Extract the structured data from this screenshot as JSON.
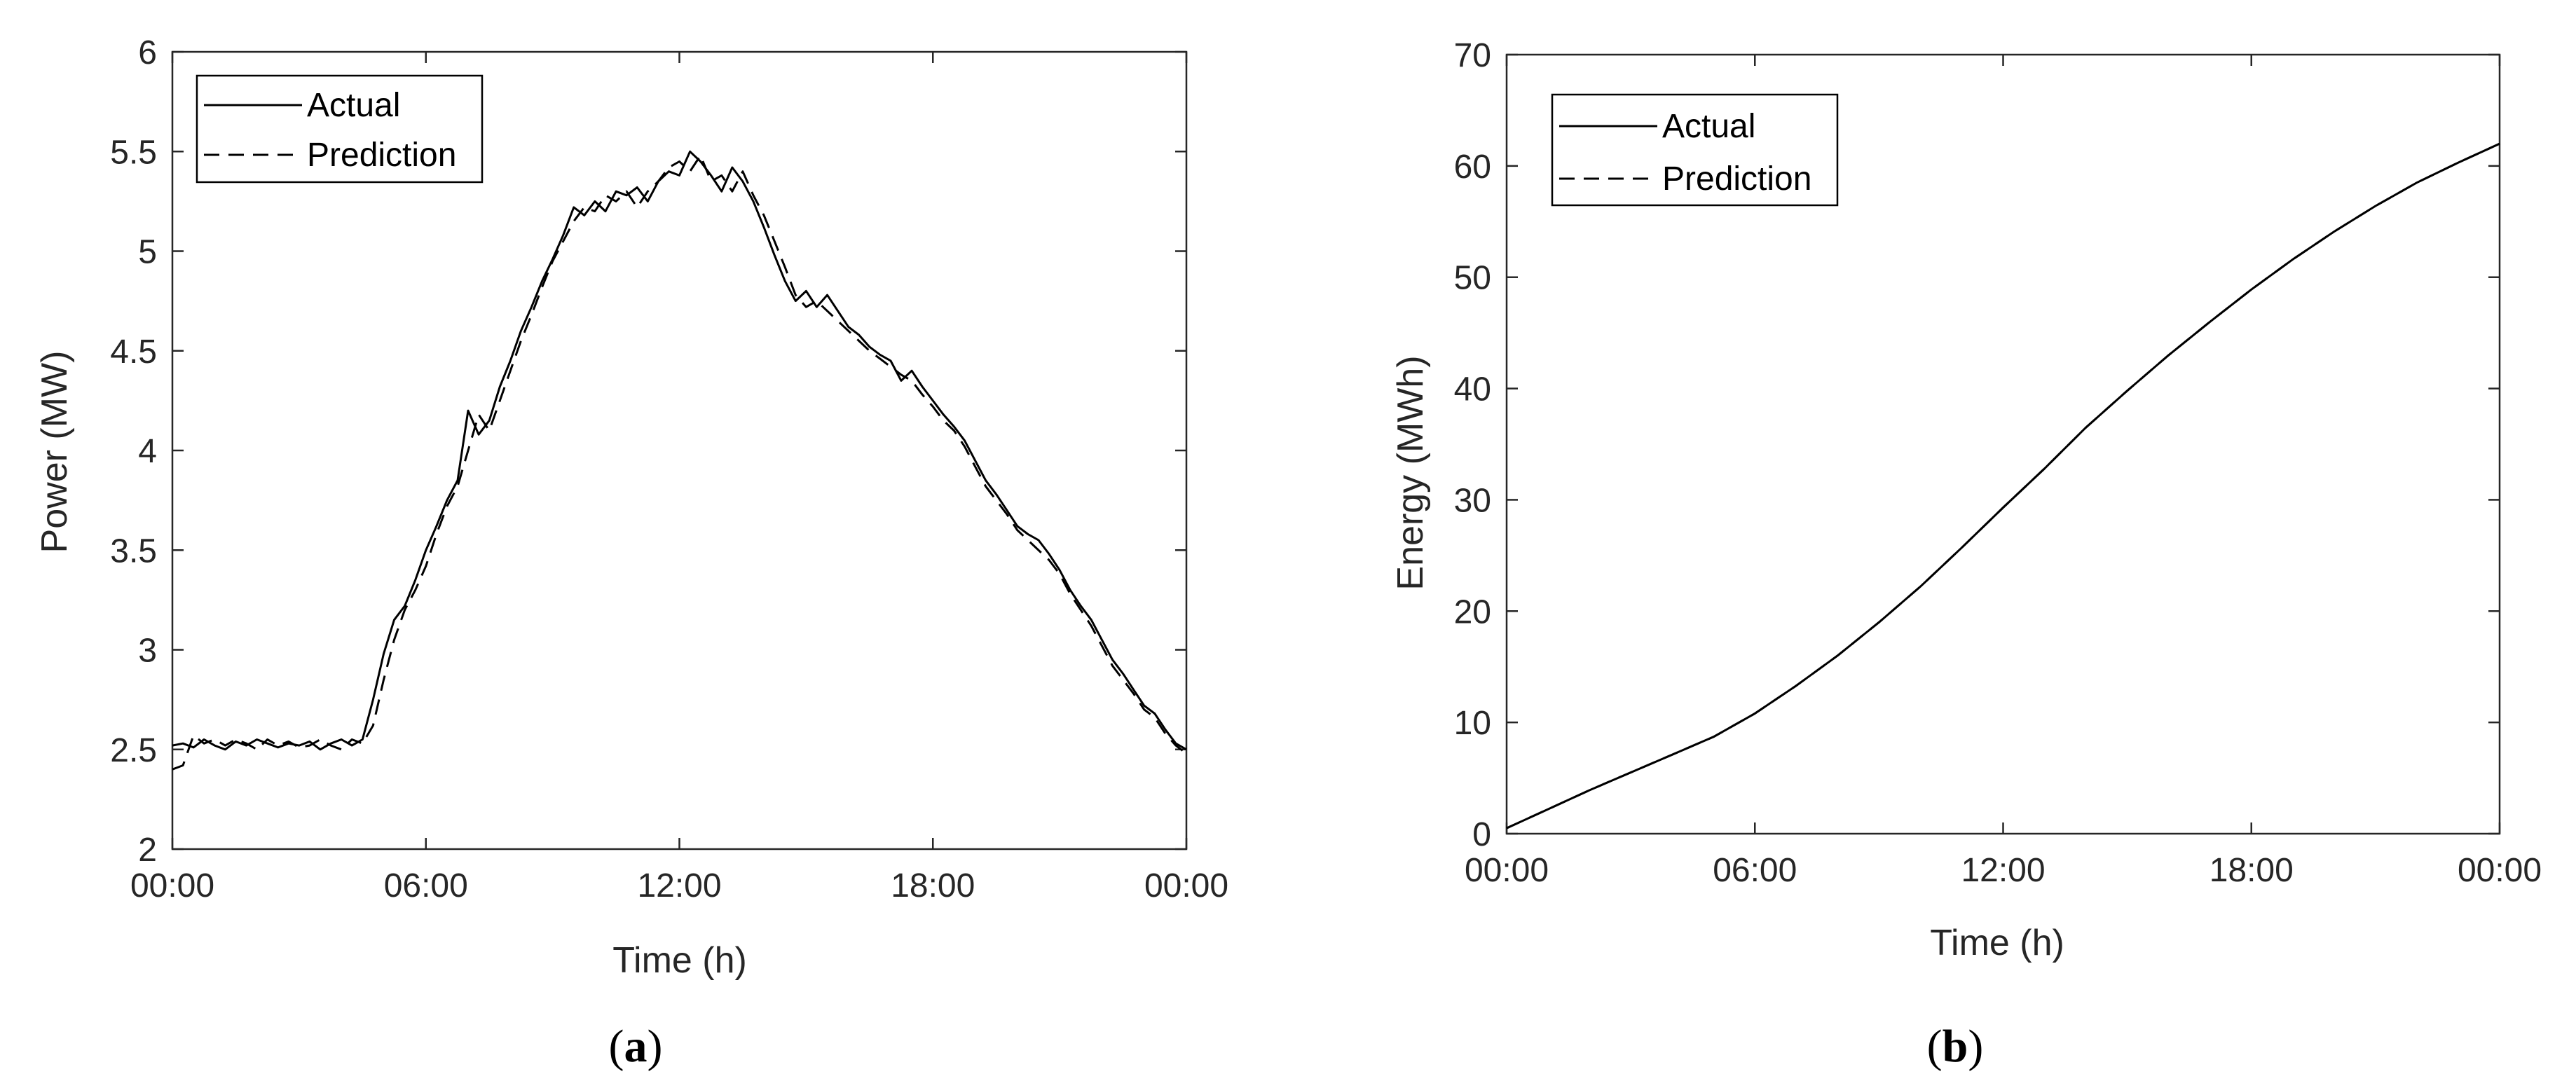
{
  "chart_data": [
    {
      "type": "line",
      "panel_label": {
        "open": "(",
        "letter": "a",
        "close": ")"
      },
      "xlabel": "Time (h)",
      "ylabel": "Power (MW)",
      "xlim": [
        0,
        24
      ],
      "ylim": [
        2,
        6
      ],
      "x_ticks": [
        0,
        6,
        12,
        18,
        24
      ],
      "x_tick_labels": [
        "00:00",
        "06:00",
        "12:00",
        "18:00",
        "00:00"
      ],
      "y_ticks": [
        2,
        2.5,
        3,
        3.5,
        4,
        4.5,
        5,
        5.5,
        6
      ],
      "y_tick_labels": [
        "2",
        "2.5",
        "3",
        "3.5",
        "4",
        "4.5",
        "5",
        "5.5",
        "6"
      ],
      "grid": false,
      "legend_position": "top-left",
      "series": [
        {
          "name": "Actual",
          "style": "solid",
          "x": [
            0,
            0.25,
            0.5,
            0.75,
            1,
            1.25,
            1.5,
            1.75,
            2,
            2.25,
            2.5,
            2.75,
            3,
            3.25,
            3.5,
            3.75,
            4,
            4.25,
            4.5,
            4.75,
            5,
            5.25,
            5.5,
            5.75,
            6,
            6.25,
            6.5,
            6.75,
            7,
            7.25,
            7.5,
            7.75,
            8,
            8.25,
            8.5,
            8.75,
            9,
            9.25,
            9.5,
            9.75,
            10,
            10.25,
            10.5,
            10.75,
            11,
            11.25,
            11.5,
            11.75,
            12,
            12.25,
            12.5,
            12.75,
            13,
            13.25,
            13.5,
            13.75,
            14,
            14.25,
            14.5,
            14.75,
            15,
            15.25,
            15.5,
            15.75,
            16,
            16.25,
            16.5,
            16.75,
            17,
            17.25,
            17.5,
            17.75,
            18,
            18.25,
            18.5,
            18.75,
            19,
            19.25,
            19.5,
            19.75,
            20,
            20.25,
            20.5,
            20.75,
            21,
            21.25,
            21.5,
            21.75,
            22,
            22.25,
            22.5,
            22.75,
            23,
            23.25,
            23.5,
            23.75,
            24
          ],
          "values": [
            2.52,
            2.53,
            2.51,
            2.55,
            2.52,
            2.5,
            2.54,
            2.52,
            2.55,
            2.53,
            2.51,
            2.53,
            2.52,
            2.54,
            2.5,
            2.53,
            2.55,
            2.52,
            2.55,
            2.75,
            2.98,
            3.15,
            3.22,
            3.35,
            3.5,
            3.62,
            3.75,
            3.85,
            4.2,
            4.08,
            4.15,
            4.32,
            4.45,
            4.6,
            4.72,
            4.85,
            4.96,
            5.08,
            5.22,
            5.18,
            5.25,
            5.2,
            5.3,
            5.28,
            5.32,
            5.25,
            5.35,
            5.4,
            5.38,
            5.5,
            5.45,
            5.38,
            5.3,
            5.42,
            5.35,
            5.25,
            5.12,
            4.98,
            4.85,
            4.75,
            4.8,
            4.72,
            4.78,
            4.7,
            4.62,
            4.58,
            4.52,
            4.48,
            4.45,
            4.35,
            4.4,
            4.32,
            4.25,
            4.18,
            4.12,
            4.05,
            3.95,
            3.85,
            3.78,
            3.7,
            3.62,
            3.58,
            3.55,
            3.48,
            3.4,
            3.3,
            3.22,
            3.15,
            3.05,
            2.95,
            2.88,
            2.8,
            2.72,
            2.68,
            2.6,
            2.53,
            2.5
          ]
        },
        {
          "name": "Prediction",
          "style": "dashed",
          "x": [
            0,
            0.25,
            0.5,
            0.75,
            1,
            1.25,
            1.5,
            1.75,
            2,
            2.25,
            2.5,
            2.75,
            3,
            3.25,
            3.5,
            3.75,
            4,
            4.25,
            4.5,
            4.75,
            5,
            5.25,
            5.5,
            5.75,
            6,
            6.25,
            6.5,
            6.75,
            7,
            7.25,
            7.5,
            7.75,
            8,
            8.25,
            8.5,
            8.75,
            9,
            9.25,
            9.5,
            9.75,
            10,
            10.25,
            10.5,
            10.75,
            11,
            11.25,
            11.5,
            11.75,
            12,
            12.25,
            12.5,
            12.75,
            13,
            13.25,
            13.5,
            13.75,
            14,
            14.25,
            14.5,
            14.75,
            15,
            15.25,
            15.5,
            15.75,
            16,
            16.25,
            16.5,
            16.75,
            17,
            17.25,
            17.5,
            17.75,
            18,
            18.25,
            18.5,
            18.75,
            19,
            19.25,
            19.5,
            19.75,
            20,
            20.25,
            20.5,
            20.75,
            21,
            21.25,
            21.5,
            21.75,
            22,
            22.25,
            22.5,
            22.75,
            23,
            23.25,
            23.5,
            23.75,
            24
          ],
          "values": [
            2.4,
            2.42,
            2.57,
            2.53,
            2.55,
            2.52,
            2.55,
            2.53,
            2.5,
            2.55,
            2.52,
            2.54,
            2.51,
            2.52,
            2.55,
            2.52,
            2.5,
            2.55,
            2.53,
            2.62,
            2.85,
            3.05,
            3.2,
            3.3,
            3.42,
            3.58,
            3.72,
            3.82,
            4.0,
            4.18,
            4.1,
            4.25,
            4.4,
            4.55,
            4.68,
            4.82,
            4.95,
            5.05,
            5.15,
            5.22,
            5.2,
            5.28,
            5.25,
            5.3,
            5.22,
            5.3,
            5.35,
            5.42,
            5.45,
            5.4,
            5.48,
            5.35,
            5.38,
            5.3,
            5.4,
            5.28,
            5.18,
            5.05,
            4.92,
            4.78,
            4.72,
            4.75,
            4.7,
            4.65,
            4.6,
            4.55,
            4.5,
            4.46,
            4.42,
            4.38,
            4.35,
            4.28,
            4.22,
            4.15,
            4.1,
            4.02,
            3.92,
            3.82,
            3.75,
            3.68,
            3.6,
            3.55,
            3.5,
            3.45,
            3.38,
            3.28,
            3.2,
            3.12,
            3.02,
            2.92,
            2.85,
            2.78,
            2.7,
            2.66,
            2.58,
            2.52,
            2.48
          ]
        }
      ]
    },
    {
      "type": "line",
      "panel_label": {
        "open": "(",
        "letter": "b",
        "close": ")"
      },
      "xlabel": "Time (h)",
      "ylabel": "Energy (MWh)",
      "xlim": [
        0,
        24
      ],
      "ylim": [
        0,
        70
      ],
      "x_ticks": [
        0,
        6,
        12,
        18,
        24
      ],
      "x_tick_labels": [
        "00:00",
        "06:00",
        "12:00",
        "18:00",
        "00:00"
      ],
      "y_ticks": [
        0,
        10,
        20,
        30,
        40,
        50,
        60,
        70
      ],
      "y_tick_labels": [
        "0",
        "10",
        "20",
        "30",
        "40",
        "50",
        "60",
        "70"
      ],
      "grid": false,
      "legend_position": "top-left",
      "series": [
        {
          "name": "Actual",
          "style": "solid",
          "x": [
            0,
            1,
            2,
            3,
            4,
            5,
            6,
            7,
            8,
            9,
            10,
            11,
            12,
            13,
            14,
            15,
            16,
            17,
            18,
            19,
            20,
            21,
            22,
            23,
            24
          ],
          "values": [
            0.5,
            2.2,
            3.9,
            5.5,
            7.1,
            8.7,
            10.8,
            13.3,
            16.0,
            19.0,
            22.2,
            25.7,
            29.3,
            32.8,
            36.5,
            39.8,
            43.0,
            46.0,
            48.9,
            51.6,
            54.1,
            56.4,
            58.5,
            60.3,
            62.0
          ]
        },
        {
          "name": "Prediction",
          "style": "dashed",
          "x": [
            0,
            1,
            2,
            3,
            4,
            5,
            6,
            7,
            8,
            9,
            10,
            11,
            12,
            13,
            14,
            15,
            16,
            17,
            18,
            19,
            20,
            21,
            22,
            23,
            24
          ],
          "values": [
            0.5,
            2.2,
            3.9,
            5.5,
            7.1,
            8.7,
            10.8,
            13.3,
            16.0,
            19.0,
            22.2,
            25.7,
            29.3,
            32.8,
            36.5,
            39.8,
            43.0,
            46.0,
            48.9,
            51.6,
            54.1,
            56.4,
            58.5,
            60.3,
            62.0
          ]
        }
      ]
    }
  ]
}
